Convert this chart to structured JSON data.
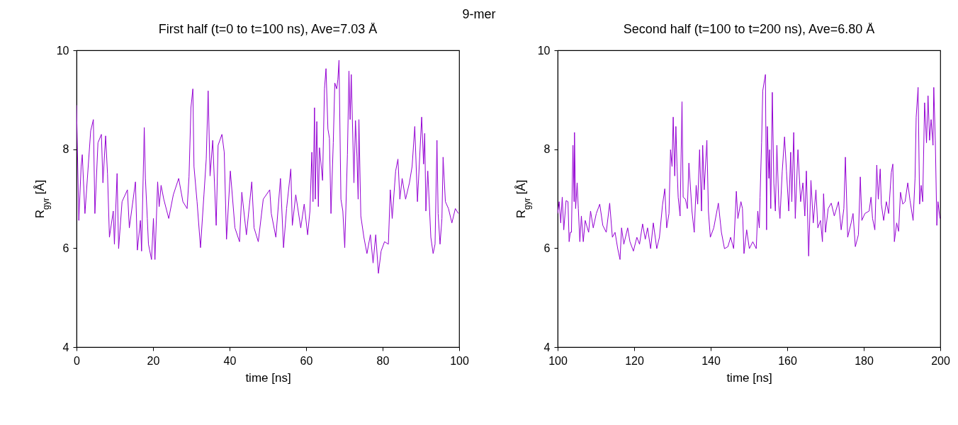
{
  "chart_data": [
    {
      "type": "line",
      "title": "First half (t=0 to t=100 ns), Ave=7.03 Å",
      "xlabel": "time [ns]",
      "ylabel": "R$_{gyr}$ [Å]",
      "annotations": [
        "9-mer"
      ],
      "xlim": [
        0,
        100
      ],
      "xticks": [
        0,
        20,
        40,
        60,
        80,
        100
      ],
      "ylim": [
        4,
        10
      ],
      "yticks": [
        4,
        6,
        8,
        10
      ],
      "grid": false,
      "series": [
        {
          "color": "#9400d3",
          "x": [
            0,
            0.6,
            1.2,
            1.5,
            2.2,
            3.7,
            4.4,
            4.8,
            5.6,
            6.5,
            6.9,
            7.6,
            8.1,
            8.6,
            9.6,
            9.9,
            10.6,
            11,
            11.9,
            13.3,
            13.8,
            14.8,
            15.4,
            15.9,
            16.7,
            17,
            17.7,
            18,
            18.5,
            18.8,
            19.6,
            20.1,
            20.5,
            21.2,
            21.6,
            22.1,
            22.8,
            24.1,
            25.3,
            26.7,
            27.8,
            28.9,
            29.4,
            29.9,
            30.4,
            30.7,
            31.5,
            32.4,
            33.3,
            33.9,
            34.4,
            34.9,
            35.6,
            36.5,
            37,
            38,
            38.6,
            39.2,
            40.2,
            41.4,
            42.6,
            43.2,
            44.4,
            45.8,
            46.4,
            47.5,
            48.8,
            50.5,
            50.9,
            52.1,
            53.3,
            54.1,
            54.9,
            56,
            56.4,
            57.3,
            58.6,
            59.5,
            60.4,
            61,
            61.5,
            61.8,
            62.2,
            62.4,
            62.8,
            63.2,
            63.5,
            64.3,
            64.8,
            65.2,
            65.7,
            66.1,
            66.5,
            67.1,
            67.5,
            68,
            68.3,
            68.6,
            69.1,
            69.6,
            70.1,
            70.8,
            71.2,
            71.5,
            71.8,
            72.5,
            72.9,
            73.3,
            73.6,
            73.8,
            74.3,
            75.1,
            75.9,
            76.8,
            77.5,
            78.2,
            78.9,
            79.6,
            80.5,
            81.5,
            82,
            82.5,
            83.4,
            84,
            84.5,
            85.1,
            86,
            87,
            87.7,
            88.4,
            89.1,
            90.2,
            90.7,
            91,
            91.3,
            91.8,
            92.6,
            93.2,
            93.7,
            94.2,
            94.5,
            95,
            95.5,
            95.8,
            96.4,
            97.2,
            98.1,
            99,
            99.8
          ],
          "values": [
            8.89,
            6.56,
            7.65,
            7.89,
            6.7,
            8.37,
            8.6,
            6.7,
            8.13,
            8.3,
            7.32,
            8.27,
            7.5,
            6.22,
            6.75,
            6.08,
            7.51,
            5.99,
            6.94,
            7.18,
            6.41,
            6.99,
            7.34,
            5.96,
            6.56,
            5.94,
            8.44,
            7.41,
            6.6,
            6.08,
            5.77,
            6.6,
            5.77,
            7.34,
            6.84,
            7.27,
            6.99,
            6.6,
            7.08,
            7.41,
            6.94,
            6.8,
            7.44,
            8.84,
            9.22,
            7.65,
            6.94,
            6.01,
            7.08,
            7.8,
            9.18,
            7.46,
            8.18,
            6.46,
            8.08,
            8.3,
            7.94,
            6.18,
            7.56,
            6.41,
            6.13,
            7.13,
            6.27,
            7.34,
            6.41,
            6.13,
            6.99,
            7.18,
            6.7,
            6.22,
            7.41,
            6.01,
            6.8,
            7.6,
            6.46,
            7.08,
            6.41,
            6.89,
            6.27,
            6.75,
            7.94,
            6.94,
            8.84,
            6.99,
            8.56,
            6.84,
            8.03,
            7.37,
            9.22,
            9.63,
            8.41,
            8.22,
            6.7,
            8.13,
            9.34,
            9.22,
            9.41,
            9.8,
            6.99,
            6.75,
            6.01,
            7.89,
            9.58,
            8.6,
            9.51,
            7.32,
            8.58,
            7.84,
            6.99,
            8.6,
            6.65,
            6.22,
            5.89,
            6.27,
            5.7,
            6.27,
            5.49,
            5.94,
            6.13,
            6.08,
            7.18,
            6.6,
            7.56,
            7.8,
            6.99,
            7.41,
            6.99,
            7.32,
            7.65,
            8.46,
            6.94,
            8.65,
            7.7,
            8.32,
            6.75,
            7.56,
            6.22,
            5.89,
            6.08,
            8.18,
            6.7,
            6.08,
            6.6,
            7.84,
            6.94,
            6.8,
            6.51,
            6.8,
            6.7
          ]
        }
      ]
    },
    {
      "type": "line",
      "title": "Second half (t=100 to t=200 ns), Ave=6.80 Å",
      "xlabel": "time [ns]",
      "ylabel": "R$_{gyr}$ [Å]",
      "xlim": [
        100,
        200
      ],
      "xticks": [
        100,
        120,
        140,
        160,
        180,
        200
      ],
      "ylim": [
        4,
        10
      ],
      "yticks": [
        4,
        6,
        8,
        10
      ],
      "grid": false,
      "series": [
        {
          "color": "#9400d3",
          "x": [
            100,
            100.4,
            100.8,
            101.2,
            101.6,
            102.2,
            102.7,
            103,
            103.3,
            103.6,
            104,
            104.3,
            104.4,
            104.7,
            105.1,
            105.4,
            105.8,
            106.2,
            106.7,
            107.2,
            108.1,
            108.6,
            109.3,
            110.1,
            111,
            111.8,
            112.7,
            113.6,
            114.3,
            115,
            115.7,
            116.3,
            116.7,
            117.3,
            118.3,
            118.9,
            119.8,
            120.7,
            121.4,
            122.2,
            122.9,
            123.5,
            124.3,
            125,
            125.9,
            126.6,
            127.4,
            128,
            128.5,
            129.1,
            129.5,
            129.9,
            130.2,
            130.6,
            130.9,
            131.2,
            131.5,
            132,
            132.5,
            132.8,
            133.4,
            133.9,
            134.3,
            135.1,
            135.7,
            136.2,
            136.6,
            137.1,
            137.6,
            137.9,
            138.3,
            139,
            139.4,
            139.9,
            140.8,
            142,
            142.8,
            143.6,
            144.5,
            145.2,
            146,
            146.7,
            147.1,
            147.9,
            148.3,
            148.7,
            149.4,
            150.1,
            151,
            151.9,
            152.3,
            152.7,
            152.9,
            153.3,
            153.6,
            154,
            154.3,
            154.6,
            154.8,
            155.2,
            155.4,
            155.7,
            156.1,
            156.5,
            156.9,
            157.3,
            157.8,
            158.1,
            158.7,
            159.3,
            159.8,
            160.4,
            160.9,
            161.2,
            161.7,
            162.1,
            162.8,
            163.5,
            164.1,
            164.6,
            165,
            165.6,
            166.2,
            166.8,
            167.5,
            168,
            168.7,
            169.2,
            169.5,
            170,
            170.7,
            171.5,
            172.3,
            173.4,
            174.1,
            174.8,
            175.2,
            175.8,
            176.7,
            177.2,
            177.8,
            178.6,
            179.1,
            179.5,
            180.3,
            181.4,
            181.9,
            182.3,
            182.9,
            183.4,
            183.8,
            184.3,
            184.6,
            185.2,
            185.9,
            186.5,
            187.2,
            187.6,
            188,
            188.6,
            189.1,
            189.6,
            190.2,
            190.8,
            191.5,
            192.1,
            192.9,
            193.4,
            193.7,
            194.2,
            194.6,
            195,
            195.4,
            195.9,
            196.4,
            196.8,
            197.2,
            197.6,
            198.1,
            198.3,
            198.7,
            199.1,
            199.4,
            199.9
          ],
          "values": [
            6.7,
            6.94,
            6.51,
            7.03,
            6.37,
            6.96,
            6.94,
            6.13,
            6.32,
            6.32,
            8.08,
            6.94,
            8.34,
            6.8,
            7.32,
            6.8,
            6.13,
            6.65,
            6.13,
            6.56,
            6.32,
            6.75,
            6.41,
            6.7,
            6.89,
            6.46,
            6.32,
            6.91,
            6.22,
            6.32,
            5.99,
            5.77,
            6.41,
            6.08,
            6.41,
            6.13,
            5.94,
            6.22,
            6.08,
            6.49,
            6.18,
            6.41,
            5.99,
            6.51,
            5.99,
            6.22,
            6.87,
            7.2,
            6.41,
            6.7,
            7.99,
            7.65,
            8.65,
            7.46,
            8.46,
            7.65,
            7.03,
            6.65,
            8.96,
            7.03,
            6.99,
            6.8,
            7.72,
            6.75,
            6.32,
            7.27,
            6.89,
            7.99,
            6.75,
            8.08,
            7.18,
            8.18,
            6.75,
            6.22,
            6.41,
            6.91,
            6.32,
            5.99,
            6.03,
            6.22,
            5.99,
            7.15,
            6.6,
            6.94,
            6.8,
            5.89,
            6.37,
            5.99,
            6.13,
            5.99,
            6.75,
            6.41,
            7.03,
            8.13,
            9.18,
            9.37,
            9.51,
            6.37,
            8.46,
            7.41,
            7.99,
            6.8,
            9.15,
            7.32,
            6.75,
            8.08,
            6.87,
            6.6,
            7.56,
            8.25,
            7.56,
            6.75,
            7.94,
            6.94,
            8.34,
            6.6,
            7.99,
            6.94,
            7.32,
            6.65,
            7.56,
            5.84,
            7.37,
            6.51,
            7.18,
            6.41,
            6.56,
            6.13,
            7.1,
            6.32,
            6.8,
            6.91,
            6.65,
            6.94,
            6.37,
            6.8,
            7.84,
            6.22,
            6.51,
            6.7,
            6.03,
            6.27,
            7.44,
            6.56,
            6.7,
            6.75,
            7.03,
            6.6,
            6.37,
            7.68,
            6.99,
            7.6,
            6.89,
            6.56,
            6.94,
            6.7,
            7.53,
            7.7,
            6.13,
            6.51,
            6.34,
            7.13,
            6.89,
            6.94,
            7.32,
            6.96,
            6.56,
            7.41,
            8.65,
            9.25,
            6.89,
            7.27,
            6.94,
            8.94,
            8.13,
            9.08,
            8.18,
            8.6,
            8.08,
            9.25,
            8.18,
            6.46,
            6.94,
            6.6
          ]
        }
      ]
    }
  ]
}
